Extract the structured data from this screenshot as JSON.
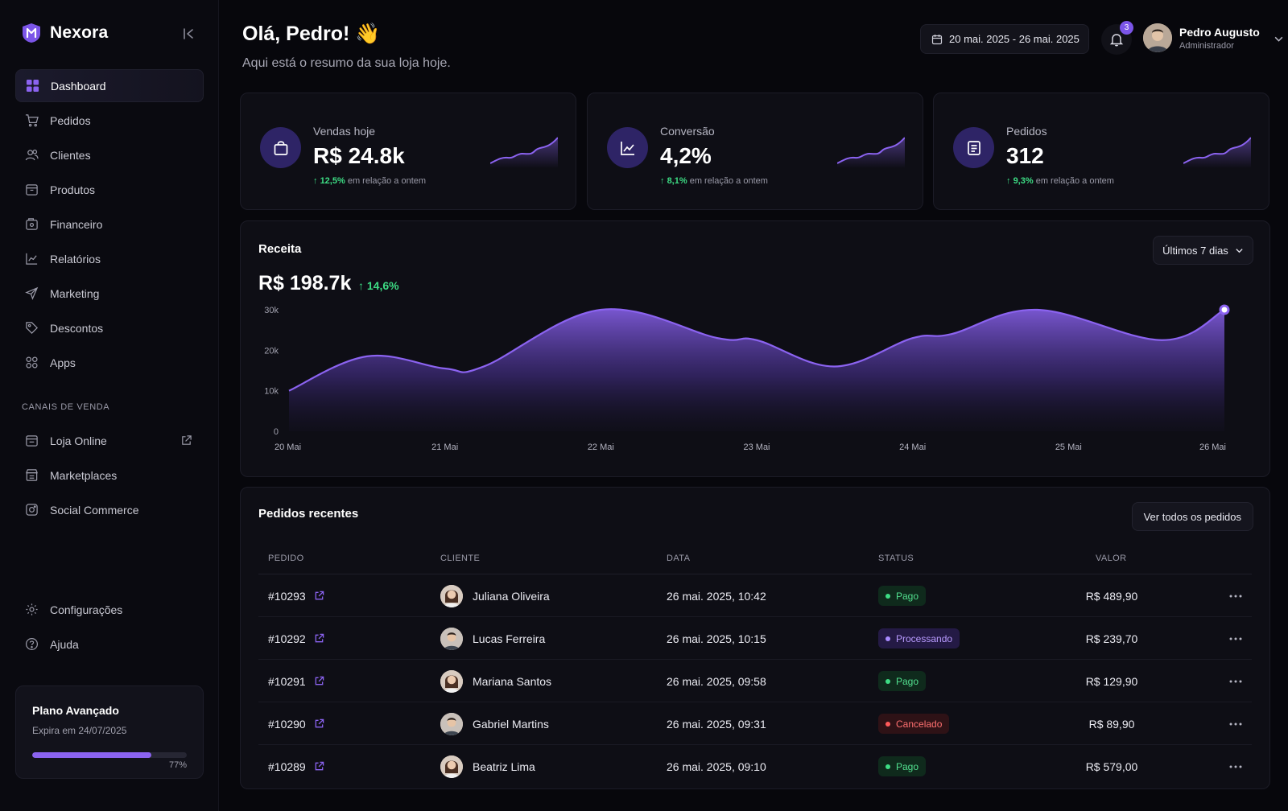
{
  "brand": {
    "name": "Nexora"
  },
  "sidebar": {
    "items": [
      {
        "label": "Dashboard",
        "icon": "grid-icon"
      },
      {
        "label": "Pedidos",
        "icon": "cart-icon"
      },
      {
        "label": "Clientes",
        "icon": "users-icon"
      },
      {
        "label": "Produtos",
        "icon": "box-icon"
      },
      {
        "label": "Financeiro",
        "icon": "wallet-icon"
      },
      {
        "label": "Relatórios",
        "icon": "chart-icon"
      },
      {
        "label": "Marketing",
        "icon": "send-icon"
      },
      {
        "label": "Descontos",
        "icon": "tag-icon"
      },
      {
        "label": "Apps",
        "icon": "apps-icon"
      }
    ],
    "sales_channels_title": "CANAIS DE VENDA",
    "channels": [
      {
        "label": "Loja Online",
        "icon": "store-icon"
      },
      {
        "label": "Marketplaces",
        "icon": "marketplace-icon"
      },
      {
        "label": "Social Commerce",
        "icon": "social-icon"
      }
    ],
    "bottom": [
      {
        "label": "Configurações",
        "icon": "gear-icon"
      },
      {
        "label": "Ajuda",
        "icon": "help-icon"
      }
    ],
    "plan": {
      "title": "Plano Avançado",
      "expires": "Expira em 24/07/2025",
      "progress": 0.77,
      "progress_label": "77%"
    }
  },
  "header": {
    "greeting": "Olá, Pedro! 👋",
    "subtitle": "Aqui está o resumo da sua loja hoje.",
    "date_range": "20 mai. 2025 - 26 mai. 2025",
    "notifications": "3",
    "user": {
      "name": "Pedro Augusto",
      "role": "Administrador"
    }
  },
  "stats": [
    {
      "label": "Vendas hoje",
      "value": "R$ 24.8k",
      "delta": "12,5%",
      "delta_text": "em relação a ontem",
      "icon": "bag-icon"
    },
    {
      "label": "Conversão",
      "value": "4,2%",
      "delta": "8,1%",
      "delta_text": "em relação a ontem",
      "icon": "trend-icon"
    },
    {
      "label": "Pedidos",
      "value": "312",
      "delta": "9,3%",
      "delta_text": "em relação a ontem",
      "icon": "document-icon"
    }
  ],
  "revenue": {
    "title": "Receita",
    "total": "R$ 198.7k",
    "delta": "14,6%",
    "period": "Últimos 7 dias"
  },
  "chart_data": {
    "type": "area",
    "x": [
      "20 Mai",
      "21 Mai",
      "22 Mai",
      "23 Mai",
      "24 Mai",
      "25 Mai",
      "26 Mai"
    ],
    "y_ticks": [
      "0",
      "10k",
      "20k",
      "30k"
    ],
    "ylim": [
      0,
      30000
    ],
    "points": [
      {
        "x": 0.0,
        "y": 10000
      },
      {
        "x": 0.5,
        "y": 18500
      },
      {
        "x": 1.0,
        "y": 15500
      },
      {
        "x": 1.25,
        "y": 16000
      },
      {
        "x": 2.0,
        "y": 30000
      },
      {
        "x": 2.75,
        "y": 23000
      },
      {
        "x": 3.0,
        "y": 22500
      },
      {
        "x": 3.5,
        "y": 16000
      },
      {
        "x": 4.0,
        "y": 23000
      },
      {
        "x": 4.25,
        "y": 24000
      },
      {
        "x": 4.8,
        "y": 30000
      },
      {
        "x": 5.6,
        "y": 22500
      },
      {
        "x": 6.0,
        "y": 30000
      }
    ],
    "color": "#8b63f0"
  },
  "orders": {
    "title": "Pedidos recentes",
    "view_all": "Ver todos os pedidos",
    "columns": [
      "PEDIDO",
      "CLIENTE",
      "DATA",
      "STATUS",
      "VALOR"
    ],
    "rows": [
      {
        "id": "#10293",
        "client": "Juliana Oliveira",
        "date": "26 mai. 2025, 10:42",
        "status": "Pago",
        "status_type": "paid",
        "value": "R$ 489,90",
        "avatar": "female"
      },
      {
        "id": "#10292",
        "client": "Lucas Ferreira",
        "date": "26 mai. 2025, 10:15",
        "status": "Processando",
        "status_type": "processing",
        "value": "R$ 239,70",
        "avatar": "male"
      },
      {
        "id": "#10291",
        "client": "Mariana Santos",
        "date": "26 mai. 2025, 09:58",
        "status": "Pago",
        "status_type": "paid",
        "value": "R$ 129,90",
        "avatar": "female"
      },
      {
        "id": "#10290",
        "client": "Gabriel Martins",
        "date": "26 mai. 2025, 09:31",
        "status": "Cancelado",
        "status_type": "cancelled",
        "value": "R$ 89,90",
        "avatar": "male"
      },
      {
        "id": "#10289",
        "client": "Beatriz Lima",
        "date": "26 mai. 2025, 09:10",
        "status": "Pago",
        "status_type": "paid",
        "value": "R$ 579,00",
        "avatar": "female"
      }
    ]
  },
  "colors": {
    "accent": "#8b63f0",
    "success": "#3ddc84",
    "danger": "#ff5a5a",
    "processing": "#a98bff"
  }
}
